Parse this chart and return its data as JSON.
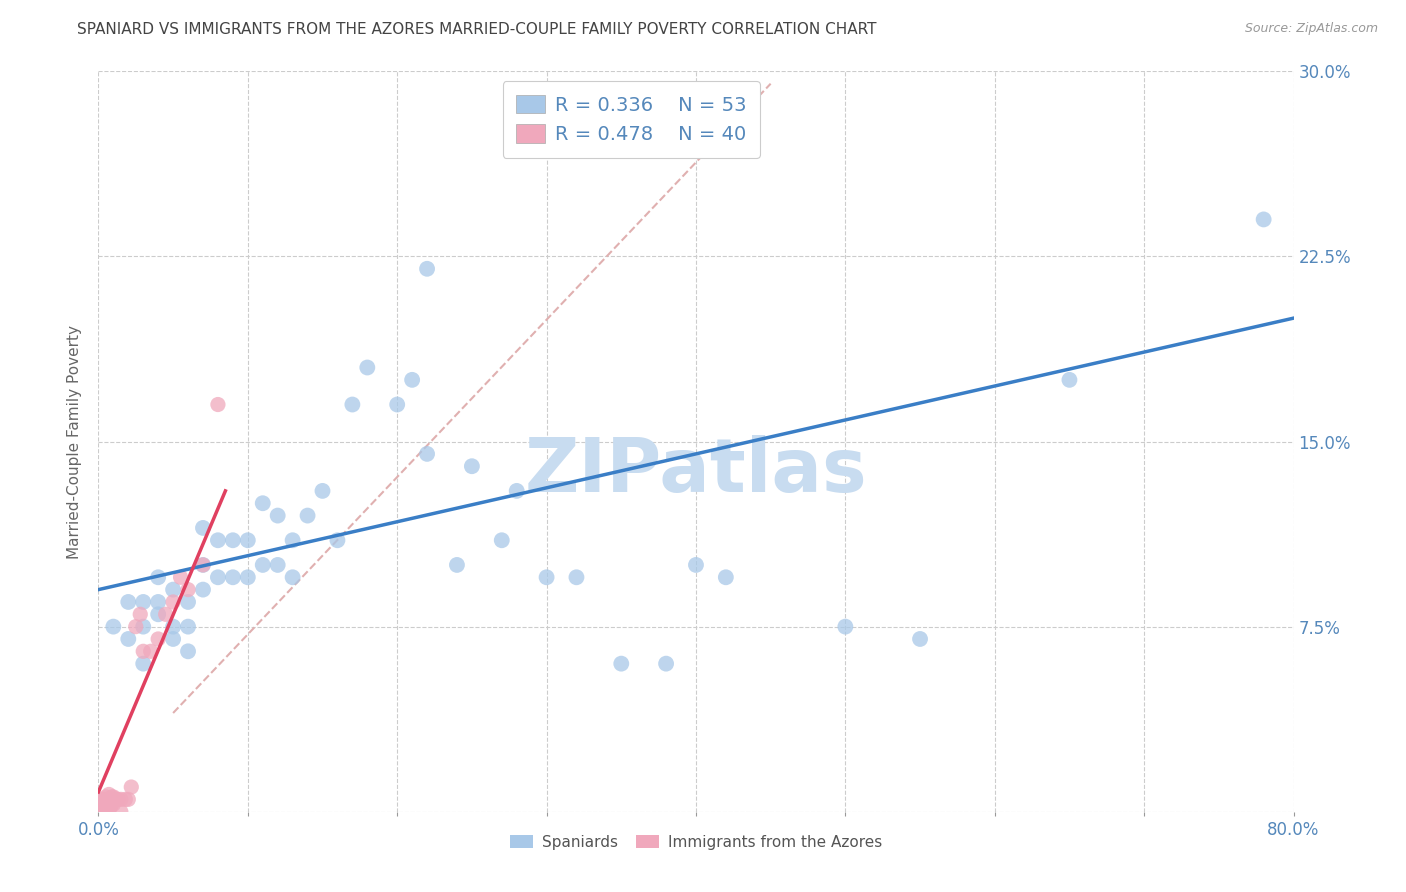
{
  "title": "SPANIARD VS IMMIGRANTS FROM THE AZORES MARRIED-COUPLE FAMILY POVERTY CORRELATION CHART",
  "source": "Source: ZipAtlas.com",
  "ylabel": "Married-Couple Family Poverty",
  "watermark": "ZIPatlas",
  "xlim": [
    0.0,
    0.8
  ],
  "ylim": [
    0.0,
    0.3
  ],
  "xticks": [
    0.0,
    0.1,
    0.2,
    0.3,
    0.4,
    0.5,
    0.6,
    0.7,
    0.8
  ],
  "yticks_right": [
    0.0,
    0.075,
    0.15,
    0.225,
    0.3
  ],
  "ytick_labels_right": [
    "",
    "7.5%",
    "15.0%",
    "22.5%",
    "30.0%"
  ],
  "legend_blue_r": "0.336",
  "legend_blue_n": "53",
  "legend_pink_r": "0.478",
  "legend_pink_n": "40",
  "blue_color": "#A8C8E8",
  "pink_color": "#F0A8BC",
  "trendline_blue_color": "#3A7EC6",
  "trendline_pink_color": "#E04060",
  "trendline_dashed_color": "#E0B0B0",
  "grid_color": "#CCCCCC",
  "title_color": "#444444",
  "axis_color": "#5588BB",
  "watermark_color": "#C8DCF0",
  "blue_scatter_x": [
    0.01,
    0.02,
    0.02,
    0.03,
    0.03,
    0.03,
    0.04,
    0.04,
    0.04,
    0.05,
    0.05,
    0.05,
    0.06,
    0.06,
    0.06,
    0.07,
    0.07,
    0.07,
    0.08,
    0.08,
    0.09,
    0.09,
    0.1,
    0.1,
    0.11,
    0.11,
    0.12,
    0.12,
    0.13,
    0.13,
    0.14,
    0.15,
    0.16,
    0.17,
    0.18,
    0.2,
    0.21,
    0.22,
    0.22,
    0.24,
    0.25,
    0.27,
    0.28,
    0.3,
    0.32,
    0.35,
    0.38,
    0.4,
    0.42,
    0.5,
    0.55,
    0.65,
    0.78
  ],
  "blue_scatter_y": [
    0.075,
    0.07,
    0.085,
    0.075,
    0.085,
    0.06,
    0.08,
    0.085,
    0.095,
    0.07,
    0.075,
    0.09,
    0.065,
    0.075,
    0.085,
    0.09,
    0.1,
    0.115,
    0.095,
    0.11,
    0.095,
    0.11,
    0.095,
    0.11,
    0.1,
    0.125,
    0.1,
    0.12,
    0.095,
    0.11,
    0.12,
    0.13,
    0.11,
    0.165,
    0.18,
    0.165,
    0.175,
    0.22,
    0.145,
    0.1,
    0.14,
    0.11,
    0.13,
    0.095,
    0.095,
    0.06,
    0.06,
    0.1,
    0.095,
    0.075,
    0.07,
    0.175,
    0.24
  ],
  "pink_scatter_x": [
    0.002,
    0.002,
    0.003,
    0.003,
    0.004,
    0.004,
    0.004,
    0.005,
    0.005,
    0.005,
    0.006,
    0.006,
    0.006,
    0.007,
    0.007,
    0.007,
    0.008,
    0.008,
    0.009,
    0.009,
    0.01,
    0.01,
    0.012,
    0.013,
    0.015,
    0.015,
    0.018,
    0.02,
    0.022,
    0.025,
    0.028,
    0.03,
    0.035,
    0.04,
    0.045,
    0.05,
    0.055,
    0.06,
    0.07,
    0.08
  ],
  "pink_scatter_y": [
    0.0,
    0.003,
    0.0,
    0.005,
    0.0,
    0.002,
    0.005,
    0.0,
    0.003,
    0.006,
    0.0,
    0.003,
    0.005,
    0.0,
    0.003,
    0.007,
    0.002,
    0.005,
    0.003,
    0.006,
    0.003,
    0.006,
    0.005,
    0.005,
    0.0,
    0.005,
    0.005,
    0.005,
    0.01,
    0.075,
    0.08,
    0.065,
    0.065,
    0.07,
    0.08,
    0.085,
    0.095,
    0.09,
    0.1,
    0.165
  ],
  "blue_trend_x": [
    0.0,
    0.8
  ],
  "blue_trend_y": [
    0.09,
    0.2
  ],
  "pink_trend_x": [
    0.0,
    0.085
  ],
  "pink_trend_y": [
    0.008,
    0.13
  ],
  "diag_line_x": [
    0.05,
    0.45
  ],
  "diag_line_y": [
    0.04,
    0.295
  ]
}
